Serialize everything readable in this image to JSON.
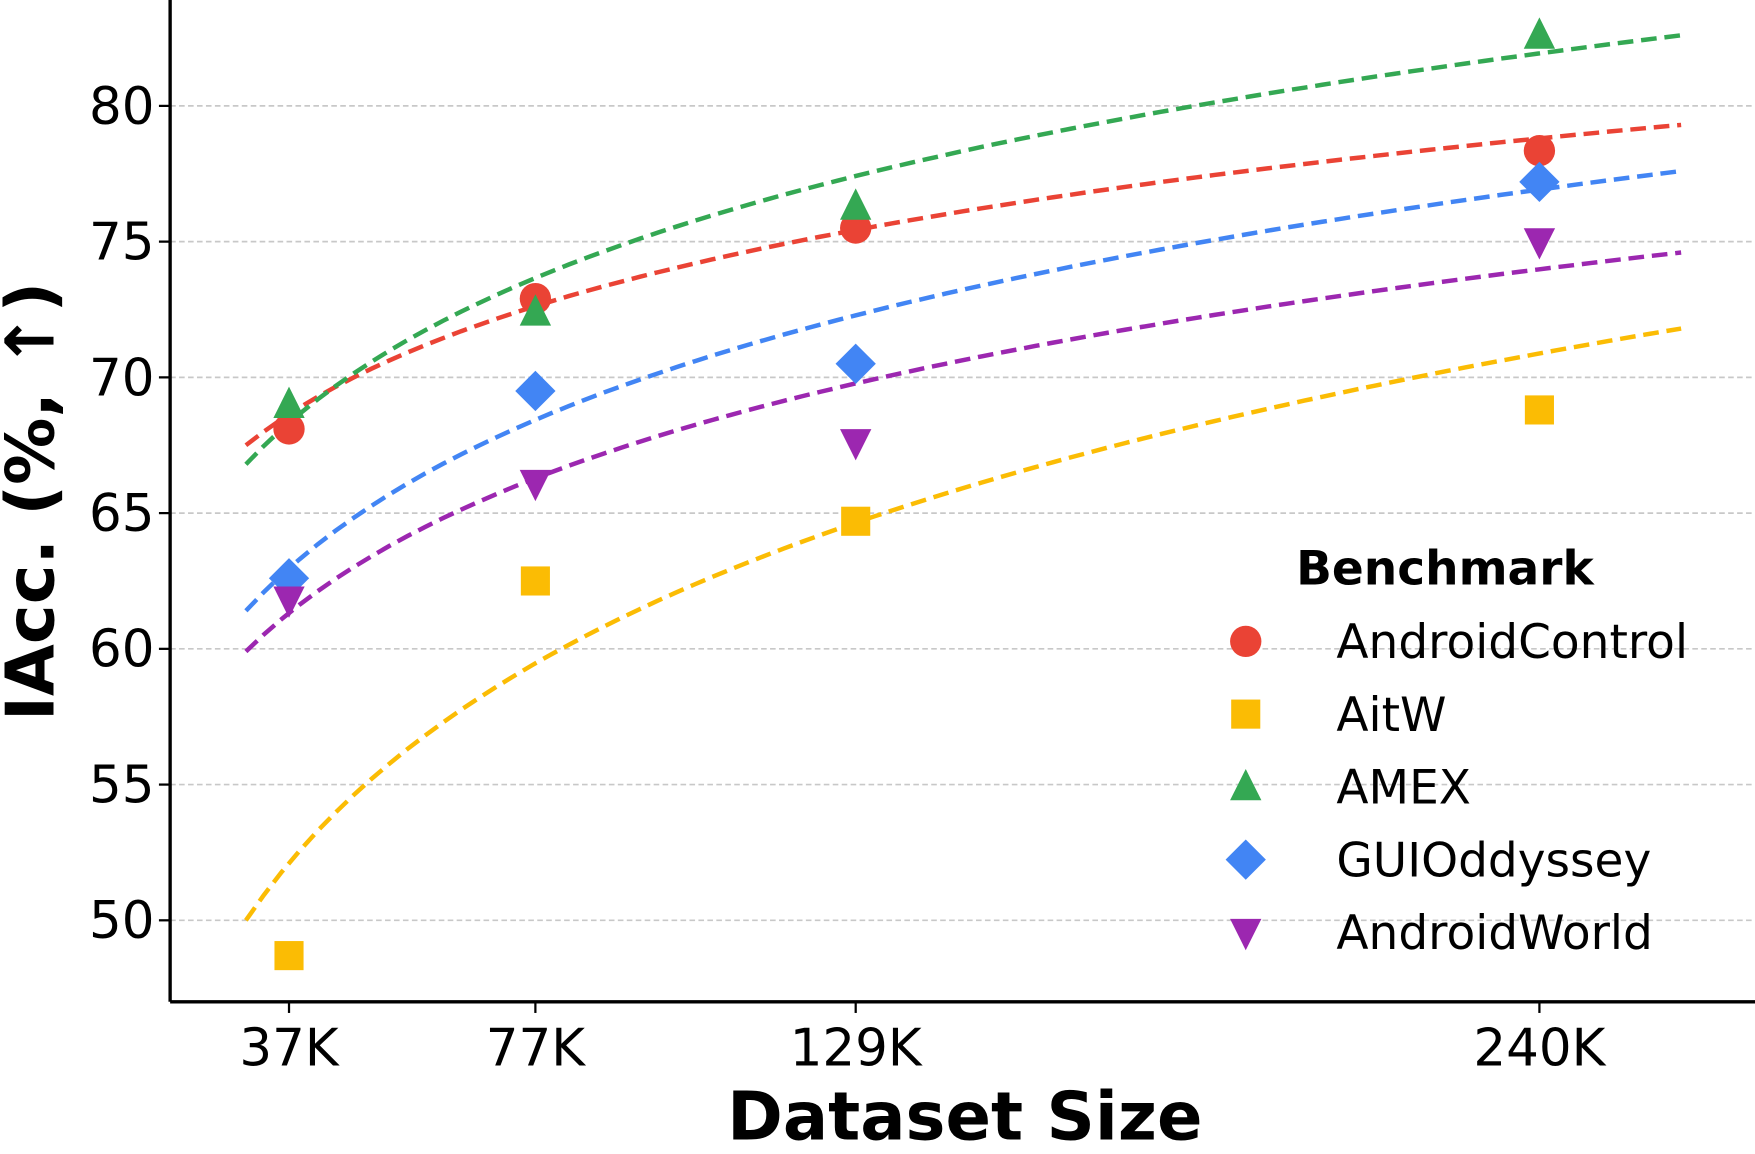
{
  "chart_data": {
    "type": "scatter",
    "xlabel": "Dataset Size",
    "ylabel": "IAcc. (%, ↑)",
    "x": [
      37,
      77,
      129,
      240
    ],
    "x_tick_labels": [
      "37K",
      "77K",
      "129K",
      "240K"
    ],
    "y_ticks": [
      50,
      55,
      60,
      65,
      70,
      75,
      80
    ],
    "xlim": [
      17.7,
      275
    ],
    "ylim": [
      47.0,
      83.9
    ],
    "grid": "horizontal dashed",
    "legend": {
      "title": "Benchmark",
      "placement": "lower-right"
    },
    "trend": {
      "type": "logarithmic fit, dashed",
      "x_range": [
        30,
        263
      ]
    },
    "series": [
      {
        "name": "AndroidControl",
        "marker": "circle",
        "color": "#EA4335",
        "values": [
          68.1,
          72.9,
          75.5,
          78.35
        ],
        "trend_ends": [
          67.5,
          79.3
        ]
      },
      {
        "name": "AitW",
        "marker": "square",
        "color": "#FBBC04",
        "values": [
          48.7,
          62.5,
          64.7,
          68.8
        ],
        "trend_ends": [
          50.0,
          71.8
        ]
      },
      {
        "name": "AMEX",
        "marker": "triangle-up",
        "color": "#34A853",
        "values": [
          69.0,
          72.4,
          76.3,
          82.6
        ],
        "trend_ends": [
          66.8,
          82.6
        ]
      },
      {
        "name": "GUIOddyssey",
        "marker": "diamond",
        "color": "#4285F4",
        "values": [
          62.6,
          69.5,
          70.5,
          77.2
        ],
        "trend_ends": [
          61.4,
          77.6
        ]
      },
      {
        "name": "AndroidWorld",
        "marker": "triangle-down",
        "color": "#9C27B0",
        "values": [
          61.8,
          66.1,
          67.6,
          75.0
        ],
        "trend_ends": [
          59.9,
          74.6
        ]
      }
    ]
  }
}
